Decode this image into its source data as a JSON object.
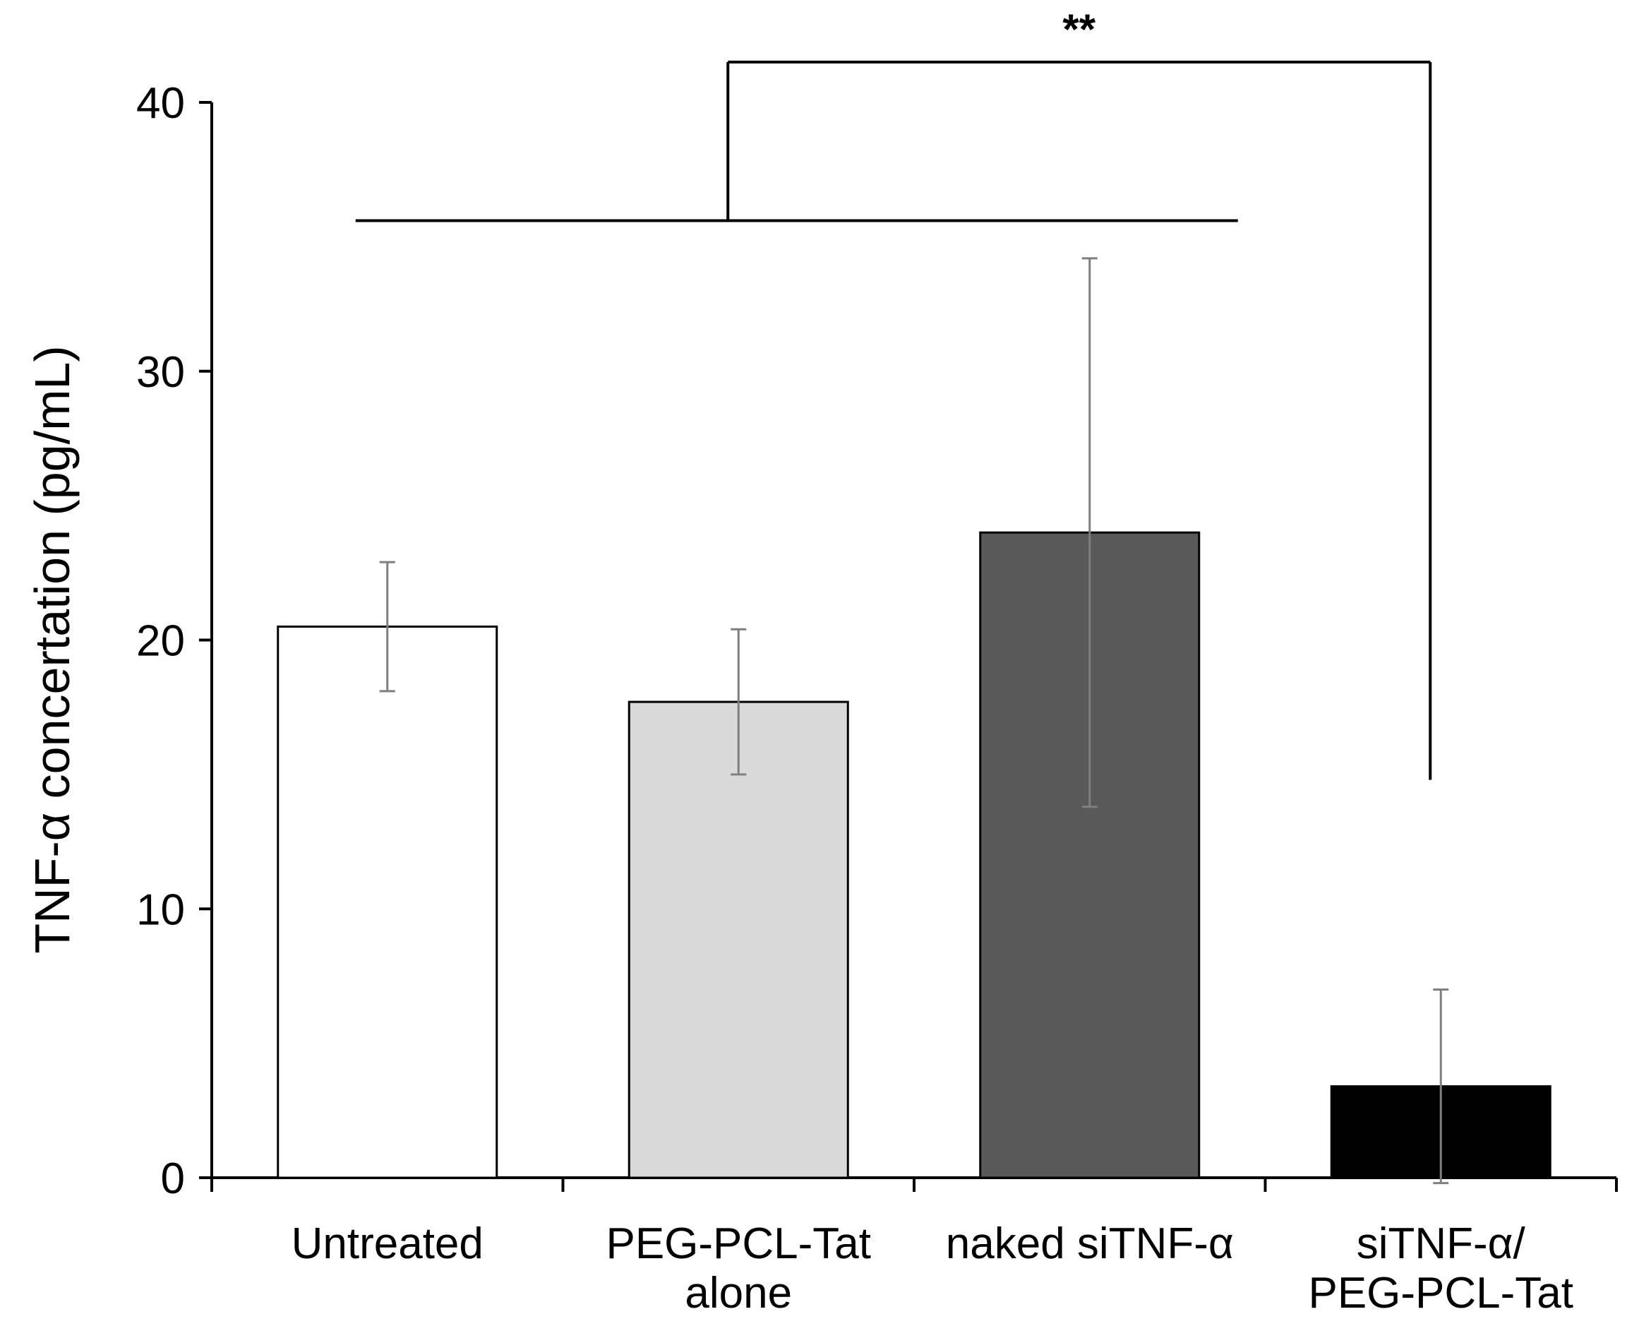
{
  "chart_data": {
    "type": "bar",
    "title": "",
    "xlabel": "",
    "ylabel": "TNF-α concertation (pg/mL)",
    "ylim": [
      0,
      40
    ],
    "yticks": [
      0,
      10,
      20,
      30,
      40
    ],
    "categories": [
      [
        "Untreated"
      ],
      [
        "PEG-PCL-Tat",
        "alone"
      ],
      [
        "naked siTNF-α"
      ],
      [
        "siTNF-α/",
        "PEG-PCL-Tat"
      ]
    ],
    "values": [
      20.5,
      17.7,
      24.0,
      3.4
    ],
    "errors": [
      2.4,
      2.7,
      10.2,
      3.6
    ],
    "colors": [
      "#ffffff",
      "#d9d9d9",
      "#595959",
      "#000000"
    ],
    "significance": {
      "label": "**",
      "groups": [
        "Untreated",
        "PEG-PCL-Tat alone",
        "naked siTNF-α"
      ],
      "versus": "siTNF-α/PEG-PCL-Tat",
      "group_bar_value": 35.6,
      "top_value": 41.5,
      "right_drop_to": 14.8
    }
  }
}
